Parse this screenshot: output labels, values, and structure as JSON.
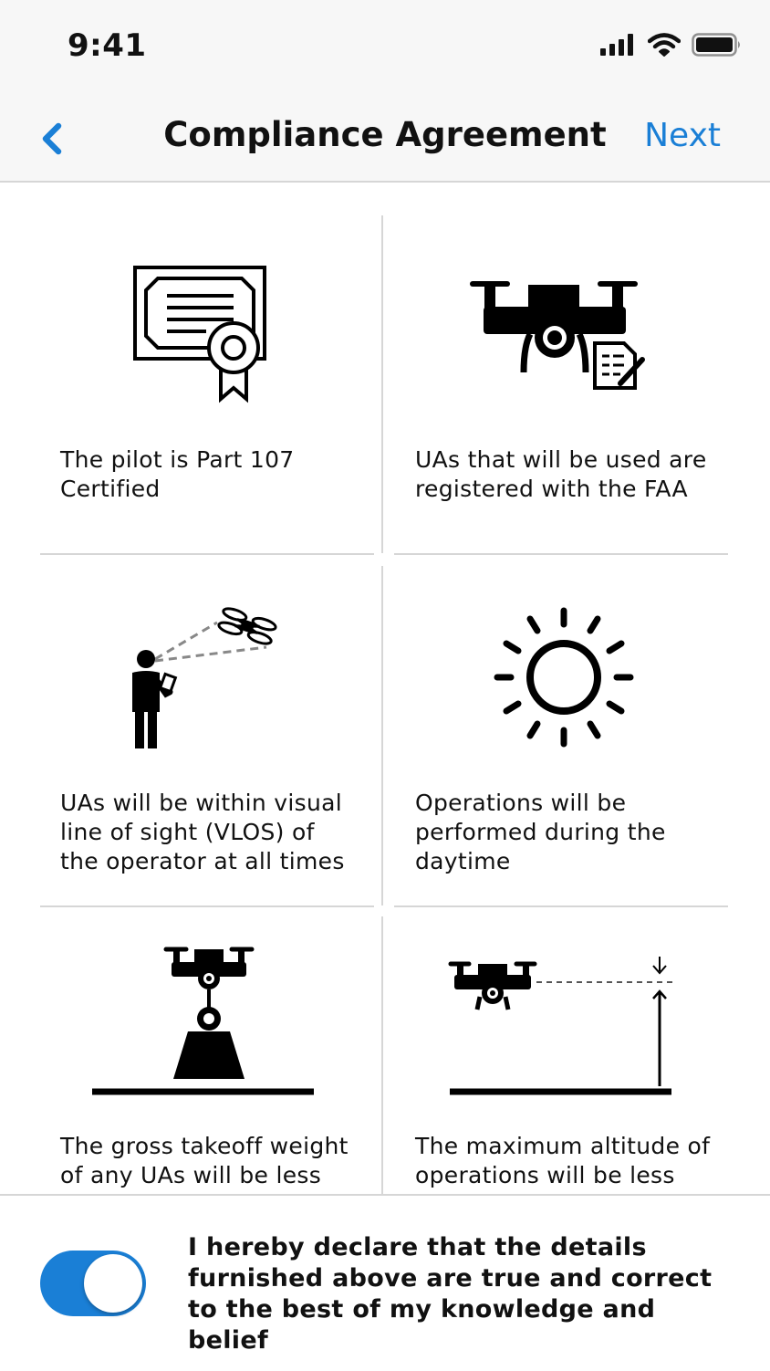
{
  "status_bar": {
    "time": "9:41",
    "icons": [
      "signal-icon",
      "wifi-icon",
      "battery-icon"
    ]
  },
  "nav": {
    "title": "Compliance Agreement",
    "next_label": "Next",
    "back_icon": "chevron-left-icon",
    "accent_color": "#1a7fd6"
  },
  "items": [
    {
      "icon": "certificate-icon",
      "label": "The pilot is Part 107\nCertified"
    },
    {
      "icon": "drone-document-icon",
      "label": "UAs that will be used are\nregistered with the FAA"
    },
    {
      "icon": "pilot-line-of-sight-icon",
      "label": "UAs will be within visual\nline of sight (VLOS) of\nthe operator at all times"
    },
    {
      "icon": "sun-icon",
      "label": "Operations will be\nperformed during the\ndaytime"
    },
    {
      "icon": "drone-weight-icon",
      "label": "The gross takeoff weight\nof any UAs will be less"
    },
    {
      "icon": "drone-altitude-icon",
      "label": "The maximum altitude of\noperations will be less"
    }
  ],
  "declaration": {
    "text": "I hereby declare that the details furnished above are true and correct to the best of my knowledge and belief",
    "toggle_on": true
  }
}
